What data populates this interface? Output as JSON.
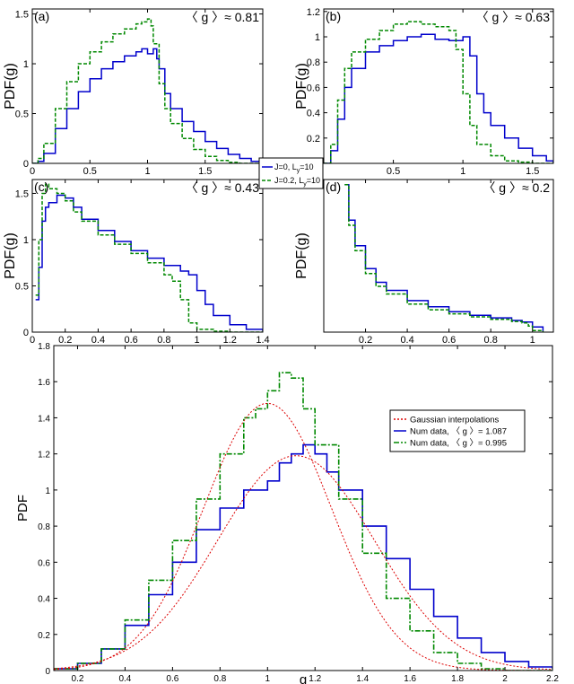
{
  "chart_data": [
    {
      "id": "a",
      "type": "line",
      "panel_label": "(a)",
      "annotation": "〈 g 〉≈ 0.81",
      "ylabel": "PDF(g)",
      "xlabel": "",
      "xlim": [
        0,
        2
      ],
      "ylim": [
        0,
        1.55
      ],
      "xticks": [
        0,
        0.5,
        1,
        1.5
      ],
      "yticks": [
        0,
        0.5,
        1,
        1.5
      ],
      "series": [
        {
          "color": "#0000cc",
          "style": "solid",
          "x": [
            0,
            0.05,
            0.1,
            0.2,
            0.3,
            0.4,
            0.5,
            0.6,
            0.7,
            0.8,
            0.9,
            0.95,
            1.0,
            1.05,
            1.08,
            1.1,
            1.15,
            1.2,
            1.3,
            1.4,
            1.5,
            1.6,
            1.7,
            1.8,
            1.9,
            2.0
          ],
          "y": [
            0,
            0.02,
            0.1,
            0.35,
            0.55,
            0.72,
            0.85,
            0.95,
            1.02,
            1.08,
            1.12,
            1.15,
            1.1,
            1.15,
            1.05,
            0.95,
            0.7,
            0.55,
            0.42,
            0.32,
            0.22,
            0.15,
            0.09,
            0.05,
            0.02,
            0
          ]
        },
        {
          "color": "#008800",
          "style": "dashed",
          "x": [
            0,
            0.05,
            0.1,
            0.2,
            0.3,
            0.4,
            0.5,
            0.6,
            0.7,
            0.8,
            0.9,
            0.95,
            1.0,
            1.03,
            1.05,
            1.1,
            1.15,
            1.2,
            1.3,
            1.4,
            1.5,
            1.6,
            1.7,
            1.8,
            2.0
          ],
          "y": [
            0,
            0.05,
            0.2,
            0.55,
            0.82,
            1.0,
            1.12,
            1.22,
            1.3,
            1.35,
            1.4,
            1.42,
            1.45,
            1.38,
            1.2,
            0.8,
            0.55,
            0.4,
            0.25,
            0.14,
            0.07,
            0.03,
            0.01,
            0,
            0
          ]
        }
      ]
    },
    {
      "id": "b",
      "type": "line",
      "panel_label": "(b)",
      "annotation": "〈 g 〉≈ 0.63",
      "ylabel": "PDF(g)",
      "xlabel": "",
      "xlim": [
        0,
        1.65
      ],
      "ylim": [
        0,
        1.22
      ],
      "xticks": [
        0.5,
        1,
        1.5
      ],
      "yticks": [
        0.2,
        0.4,
        0.6,
        0.8,
        1,
        1.2
      ],
      "series": [
        {
          "color": "#0000cc",
          "style": "solid",
          "x": [
            0,
            0.05,
            0.1,
            0.15,
            0.2,
            0.3,
            0.4,
            0.5,
            0.6,
            0.7,
            0.8,
            0.9,
            1.0,
            1.05,
            1.1,
            1.15,
            1.2,
            1.3,
            1.4,
            1.5,
            1.6,
            1.65
          ],
          "y": [
            0,
            0.1,
            0.35,
            0.6,
            0.75,
            0.88,
            0.93,
            0.97,
            1.0,
            1.02,
            0.98,
            0.97,
            1.0,
            0.85,
            0.55,
            0.4,
            0.3,
            0.2,
            0.12,
            0.06,
            0.02,
            0
          ]
        },
        {
          "color": "#008800",
          "style": "dashed",
          "x": [
            0,
            0.05,
            0.1,
            0.15,
            0.2,
            0.3,
            0.4,
            0.5,
            0.6,
            0.7,
            0.8,
            0.9,
            0.95,
            1.0,
            1.05,
            1.1,
            1.2,
            1.3,
            1.4,
            1.5,
            1.65
          ],
          "y": [
            0,
            0.15,
            0.5,
            0.75,
            0.88,
            0.98,
            1.05,
            1.1,
            1.12,
            1.1,
            1.08,
            1.05,
            0.9,
            0.55,
            0.3,
            0.15,
            0.06,
            0.02,
            0.01,
            0,
            0
          ]
        }
      ]
    },
    {
      "id": "c",
      "type": "line",
      "panel_label": "(c)",
      "annotation": "〈 g 〉≈ 0.43",
      "ylabel": "PDF(g)",
      "xlabel": "",
      "xlim": [
        0,
        1.4
      ],
      "ylim": [
        0,
        1.65
      ],
      "xticks": [
        0,
        0.2,
        0.4,
        0.6,
        0.8,
        1,
        1.2,
        1.4
      ],
      "yticks": [
        0,
        0.5,
        1,
        1.5
      ],
      "series": [
        {
          "color": "#0000cc",
          "style": "solid",
          "x": [
            0.02,
            0.04,
            0.06,
            0.08,
            0.1,
            0.15,
            0.2,
            0.25,
            0.3,
            0.4,
            0.5,
            0.6,
            0.7,
            0.8,
            0.9,
            0.95,
            1.0,
            1.05,
            1.1,
            1.2,
            1.3,
            1.4
          ],
          "y": [
            0.35,
            0.7,
            1.2,
            1.35,
            1.4,
            1.48,
            1.45,
            1.35,
            1.22,
            1.1,
            0.98,
            0.88,
            0.8,
            0.72,
            0.66,
            0.62,
            0.45,
            0.3,
            0.18,
            0.08,
            0.03,
            0.01
          ]
        },
        {
          "color": "#008800",
          "style": "dashed",
          "x": [
            0.02,
            0.04,
            0.06,
            0.08,
            0.1,
            0.15,
            0.2,
            0.25,
            0.3,
            0.4,
            0.5,
            0.6,
            0.7,
            0.8,
            0.85,
            0.9,
            0.95,
            1.0,
            1.1,
            1.2,
            1.4
          ],
          "y": [
            0.4,
            1.0,
            1.5,
            1.6,
            1.55,
            1.5,
            1.42,
            1.3,
            1.2,
            1.05,
            0.95,
            0.85,
            0.75,
            0.62,
            0.55,
            0.35,
            0.1,
            0.03,
            0.01,
            0,
            0
          ]
        }
      ]
    },
    {
      "id": "d",
      "type": "line",
      "panel_label": "(d)",
      "annotation": "〈 g 〉≈ 0.2",
      "ylabel": "PDF(g)",
      "xlabel": "",
      "xlim": [
        0,
        1.1
      ],
      "ylim": [
        0,
        3
      ],
      "xticks": [
        0.2,
        0.4,
        0.6,
        0.8,
        1
      ],
      "yticks": [],
      "series": [
        {
          "color": "#0000cc",
          "style": "solid",
          "x": [
            0.1,
            0.12,
            0.15,
            0.2,
            0.25,
            0.3,
            0.4,
            0.5,
            0.6,
            0.7,
            0.8,
            0.9,
            0.95,
            1.0,
            1.05
          ],
          "y": [
            2.9,
            2.2,
            1.7,
            1.25,
            0.98,
            0.82,
            0.62,
            0.5,
            0.4,
            0.33,
            0.28,
            0.23,
            0.2,
            0.1,
            0.02
          ]
        },
        {
          "color": "#008800",
          "style": "dashed",
          "x": [
            0.1,
            0.12,
            0.15,
            0.2,
            0.25,
            0.3,
            0.4,
            0.5,
            0.6,
            0.7,
            0.8,
            0.9,
            0.95,
            0.98,
            1.0,
            1.05
          ],
          "y": [
            2.9,
            2.1,
            1.6,
            1.15,
            0.9,
            0.75,
            0.55,
            0.44,
            0.36,
            0.3,
            0.25,
            0.21,
            0.18,
            0.12,
            0.03,
            0
          ]
        }
      ]
    },
    {
      "id": "main",
      "type": "line",
      "panel_label": "",
      "annotation": "",
      "ylabel": "PDF",
      "xlabel": "g",
      "xlim": [
        0.1,
        2.2
      ],
      "ylim": [
        0,
        1.8
      ],
      "xticks": [
        0.2,
        0.4,
        0.6,
        0.8,
        1,
        1.2,
        1.4,
        1.6,
        1.8,
        2,
        2.2
      ],
      "yticks": [
        0,
        0.2,
        0.4,
        0.6,
        0.8,
        1,
        1.2,
        1.4,
        1.6,
        1.8
      ],
      "series": [
        {
          "name": "Num data, 〈 g 〉= 1.087",
          "color": "#0000cc",
          "style": "solid",
          "x": [
            0.1,
            0.2,
            0.3,
            0.4,
            0.5,
            0.6,
            0.7,
            0.8,
            0.9,
            1.0,
            1.05,
            1.1,
            1.15,
            1.2,
            1.25,
            1.3,
            1.4,
            1.5,
            1.6,
            1.7,
            1.8,
            1.9,
            2.0,
            2.1,
            2.2
          ],
          "y": [
            0.01,
            0.04,
            0.12,
            0.25,
            0.42,
            0.6,
            0.78,
            0.9,
            1.0,
            1.05,
            1.15,
            1.2,
            1.25,
            1.2,
            1.1,
            1.0,
            0.8,
            0.62,
            0.45,
            0.3,
            0.18,
            0.1,
            0.05,
            0.02,
            0.01
          ]
        },
        {
          "name": "Num data, 〈 g 〉= 0.995",
          "color": "#008800",
          "style": "dashdot",
          "x": [
            0.1,
            0.2,
            0.3,
            0.4,
            0.5,
            0.6,
            0.7,
            0.8,
            0.9,
            0.95,
            1.0,
            1.05,
            1.1,
            1.15,
            1.2,
            1.3,
            1.4,
            1.5,
            1.6,
            1.7,
            1.8,
            1.9,
            2.0,
            2.2
          ],
          "y": [
            0.01,
            0.04,
            0.12,
            0.28,
            0.5,
            0.72,
            0.95,
            1.2,
            1.4,
            1.45,
            1.55,
            1.65,
            1.62,
            1.45,
            1.25,
            0.95,
            0.65,
            0.4,
            0.22,
            0.1,
            0.04,
            0.01,
            0,
            0
          ]
        },
        {
          "name": "Gaussian interpolations",
          "color": "#dd0000",
          "style": "dotted",
          "gaussians": [
            {
              "mean": 1.0,
              "sigma": 0.27,
              "peak": 1.48
            },
            {
              "mean": 1.12,
              "sigma": 0.33,
              "peak": 1.19
            }
          ]
        }
      ],
      "legend": {
        "position": "top-right",
        "entries": [
          {
            "label": "Gaussian interpolations",
            "color": "#dd0000",
            "style": "dotted"
          },
          {
            "label": "Num data, 〈 g 〉= 1.087",
            "color": "#0000cc",
            "style": "solid"
          },
          {
            "label": "Num data, 〈 g 〉= 0.995",
            "color": "#008800",
            "style": "dashdot"
          }
        ]
      }
    }
  ],
  "shared_legend": {
    "position": "center",
    "entries": [
      {
        "label": "J=0, L",
        "subscript": "y",
        "suffix": "=10",
        "color": "#0000cc",
        "style": "solid"
      },
      {
        "label": "J=0.2, L",
        "subscript": "y",
        "suffix": "=10",
        "color": "#008800",
        "style": "dashed"
      }
    ]
  }
}
